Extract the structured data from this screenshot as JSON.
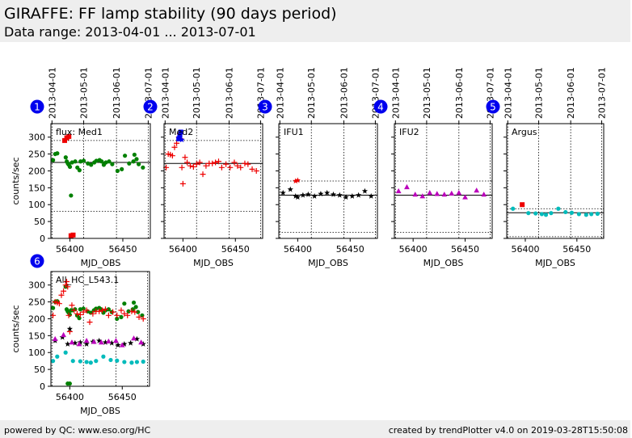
{
  "header": {
    "title": "GIRAFFE: FF lamp stability (90 days period)",
    "subtitle": "Data range: 2013-04-01 ... 2013-07-01"
  },
  "footer": {
    "left": "powered by QC: www.eso.org/HC",
    "right": "created by trendPlotter v4.0 on 2019-03-28T15:50:08"
  },
  "colors": {
    "header_bg": "#eeeeee",
    "badge": "#0000ee",
    "green": "#008000",
    "red": "#ee0000",
    "blue": "#0000ee",
    "black": "#000000",
    "magenta": "#bb00bb",
    "cyan": "#00bbbb"
  },
  "chart_data": [
    {
      "id": "1",
      "type": "scatter",
      "label": "flux: Med1",
      "xlabel": "MJD_OBS",
      "ylabel": "counts/sec",
      "xlim": [
        56382,
        56476
      ],
      "ylim": [
        0,
        340
      ],
      "xticks": [
        56400,
        56450
      ],
      "yticks": [
        0,
        50,
        100,
        150,
        200,
        250,
        300
      ],
      "top_dates": [
        "2013-04-01",
        "2013-05-01",
        "2013-06-01",
        "2013-07-01"
      ],
      "top_date_mjd": [
        56383,
        56413,
        56444,
        56474
      ],
      "ref_line": 225,
      "limits": [
        290,
        80
      ],
      "series": [
        {
          "marker": "dot",
          "color": "#008000",
          "x": [
            56384,
            56386,
            56388,
            56396,
            56397,
            56398,
            56399,
            56400,
            56401,
            56402,
            56405,
            56407,
            56409,
            56410,
            56413,
            56417,
            56420,
            56423,
            56425,
            56428,
            56430,
            56432,
            56434,
            56437,
            56440,
            56445,
            56449,
            56452,
            56456,
            56460,
            56461,
            56463,
            56465,
            56469
          ],
          "y": [
            232,
            250,
            252,
            240,
            228,
            222,
            218,
            212,
            127,
            225,
            228,
            210,
            202,
            228,
            230,
            222,
            218,
            225,
            230,
            232,
            228,
            218,
            225,
            228,
            220,
            200,
            205,
            245,
            222,
            228,
            248,
            235,
            220,
            210
          ]
        },
        {
          "marker": "square",
          "color": "#ee0000",
          "x": [
            56395,
            56397,
            56399,
            56401,
            56403
          ],
          "y": [
            290,
            298,
            302,
            8,
            10
          ]
        }
      ]
    },
    {
      "id": "2",
      "type": "scatter",
      "label": "Med2",
      "xlabel": "MJD_OBS",
      "ylabel": "",
      "xlim": [
        56382,
        56476
      ],
      "ylim": [
        0,
        340
      ],
      "xticks": [
        56400,
        56450
      ],
      "yticks": [
        0,
        50,
        100,
        150,
        200,
        250,
        300
      ],
      "top_dates": [
        "2013-04-01",
        "2013-05-01",
        "2013-06-01",
        "2013-07-01"
      ],
      "top_date_mjd": [
        56383,
        56413,
        56444,
        56474
      ],
      "ref_line": 222,
      "limits": [
        290,
        80
      ],
      "series": [
        {
          "marker": "plus",
          "color": "#ee0000",
          "x": [
            56384,
            56386,
            56388,
            56390,
            56392,
            56394,
            56396,
            56397,
            56398,
            56399,
            56400,
            56402,
            56404,
            56407,
            56410,
            56413,
            56416,
            56419,
            56422,
            56425,
            56428,
            56431,
            56434,
            56437,
            56441,
            56445,
            56449,
            56452,
            56455,
            56459,
            56462,
            56466,
            56470
          ],
          "y": [
            210,
            250,
            248,
            245,
            270,
            282,
            300,
            310,
            295,
            210,
            162,
            240,
            225,
            215,
            212,
            220,
            225,
            190,
            215,
            222,
            222,
            225,
            228,
            210,
            220,
            210,
            225,
            215,
            210,
            222,
            220,
            205,
            200
          ]
        },
        {
          "marker": "square",
          "color": "#0000ee",
          "x": [
            56396,
            56397,
            56398
          ],
          "y": [
            295,
            305,
            315
          ]
        },
        {
          "marker": "star",
          "color": "#0000ee",
          "x": [
            56397,
            56399
          ],
          "y": [
            300,
            292
          ]
        }
      ]
    },
    {
      "id": "3",
      "type": "scatter",
      "label": "IFU1",
      "xlabel": "MJD_OBS",
      "ylabel": "",
      "xlim": [
        56382,
        56476
      ],
      "ylim": [
        0,
        340
      ],
      "xticks": [
        56400,
        56450
      ],
      "yticks": [
        0,
        50,
        100,
        150,
        200,
        250,
        300
      ],
      "top_dates": [
        "2013-04-01",
        "2013-05-01",
        "2013-06-01",
        "2013-07-01"
      ],
      "top_date_mjd": [
        56383,
        56413,
        56444,
        56474
      ],
      "ref_line": 128,
      "limits": [
        170,
        18
      ],
      "series": [
        {
          "marker": "star",
          "color": "#000000",
          "x": [
            56386,
            56393,
            56398,
            56400,
            56405,
            56410,
            56416,
            56422,
            56428,
            56434,
            56440,
            56446,
            56452,
            56458,
            56464,
            56470
          ],
          "y": [
            135,
            145,
            125,
            122,
            128,
            130,
            125,
            132,
            135,
            130,
            128,
            122,
            125,
            128,
            140,
            125
          ]
        },
        {
          "marker": "star",
          "color": "#ee0000",
          "x": [
            56398,
            56400
          ],
          "y": [
            170,
            172
          ]
        }
      ]
    },
    {
      "id": "4",
      "type": "scatter",
      "label": "IFU2",
      "xlabel": "MJD_OBS",
      "ylabel": "",
      "xlim": [
        56382,
        56476
      ],
      "ylim": [
        0,
        340
      ],
      "xticks": [
        56400,
        56450
      ],
      "yticks": [
        0,
        50,
        100,
        150,
        200,
        250,
        300
      ],
      "top_dates": [
        "2013-04-01",
        "2013-05-01",
        "2013-06-01",
        "2013-07-01"
      ],
      "top_date_mjd": [
        56383,
        56413,
        56444,
        56474
      ],
      "ref_line": 128,
      "limits": [
        170,
        18
      ],
      "series": [
        {
          "marker": "triangle",
          "color": "#bb00bb",
          "x": [
            56386,
            56394,
            56402,
            56409,
            56416,
            56423,
            56430,
            56437,
            56444,
            56450,
            56461,
            56468
          ],
          "y": [
            140,
            152,
            130,
            125,
            135,
            132,
            130,
            133,
            135,
            122,
            142,
            130
          ]
        }
      ]
    },
    {
      "id": "5",
      "type": "scatter",
      "label": "Argus",
      "xlabel": "MJD_OBS",
      "ylabel": "",
      "xlim": [
        56382,
        56476
      ],
      "ylim": [
        0,
        340
      ],
      "xticks": [
        56400,
        56450
      ],
      "yticks": [
        0,
        50,
        100,
        150,
        200,
        250,
        300
      ],
      "top_dates": [
        "2013-04-01",
        "2013-05-01",
        "2013-06-01",
        "2013-07-01"
      ],
      "top_date_mjd": [
        56383,
        56413,
        56444,
        56474
      ],
      "ref_line": 76,
      "limits": [
        88,
        5
      ],
      "series": [
        {
          "marker": "dot",
          "color": "#00bbbb",
          "x": [
            56388,
            56403,
            56410,
            56416,
            56420,
            56425,
            56432,
            56439,
            56445,
            56452,
            56459,
            56464,
            56470
          ],
          "y": [
            88,
            75,
            74,
            72,
            70,
            75,
            88,
            78,
            76,
            72,
            70,
            72,
            73
          ]
        },
        {
          "marker": "square",
          "color": "#ee0000",
          "x": [
            56397
          ],
          "y": [
            100
          ]
        }
      ]
    },
    {
      "id": "6",
      "type": "scatter",
      "label": "All_HC_L543.1",
      "xlabel": "MJD_OBS",
      "ylabel": "counts/sec",
      "xlim": [
        56382,
        56476
      ],
      "ylim": [
        0,
        340
      ],
      "xticks": [
        56400,
        56450
      ],
      "yticks": [
        0,
        50,
        100,
        150,
        200,
        250,
        300
      ],
      "top_dates": [],
      "top_date_mjd": [
        56383,
        56413,
        56444,
        56474
      ],
      "ref_line": null,
      "limits": [],
      "series": [
        {
          "marker": "dot",
          "color": "#008000",
          "x": [
            56384,
            56386,
            56388,
            56396,
            56397,
            56398,
            56399,
            56400,
            56401,
            56402,
            56405,
            56407,
            56409,
            56410,
            56413,
            56417,
            56420,
            56423,
            56425,
            56428,
            56430,
            56432,
            56434,
            56437,
            56440,
            56445,
            56449,
            56452,
            56456,
            56460,
            56461,
            56463,
            56465,
            56469
          ],
          "y": [
            232,
            250,
            252,
            295,
            228,
            222,
            218,
            212,
            225,
            225,
            228,
            210,
            202,
            228,
            230,
            222,
            218,
            225,
            230,
            232,
            228,
            218,
            225,
            228,
            220,
            200,
            205,
            245,
            222,
            228,
            248,
            235,
            220,
            210
          ]
        },
        {
          "marker": "dot",
          "color": "#008000",
          "x": [
            56398,
            56400
          ],
          "y": [
            8,
            8
          ]
        },
        {
          "marker": "plus",
          "color": "#ee0000",
          "x": [
            56384,
            56386,
            56388,
            56390,
            56392,
            56394,
            56396,
            56397,
            56398,
            56399,
            56400,
            56402,
            56404,
            56407,
            56410,
            56413,
            56416,
            56419,
            56422,
            56425,
            56428,
            56431,
            56434,
            56437,
            56441,
            56445,
            56449,
            56452,
            56455,
            56459,
            56462,
            56466,
            56470
          ],
          "y": [
            210,
            250,
            248,
            245,
            270,
            282,
            300,
            310,
            295,
            210,
            162,
            240,
            225,
            215,
            212,
            220,
            225,
            190,
            215,
            222,
            222,
            225,
            228,
            210,
            220,
            210,
            225,
            215,
            210,
            222,
            220,
            205,
            200
          ]
        },
        {
          "marker": "star",
          "color": "#000000",
          "x": [
            56386,
            56393,
            56398,
            56400,
            56405,
            56410,
            56416,
            56422,
            56428,
            56434,
            56440,
            56446,
            56452,
            56458,
            56464,
            56470
          ],
          "y": [
            135,
            145,
            125,
            170,
            128,
            130,
            125,
            132,
            135,
            130,
            128,
            122,
            125,
            128,
            140,
            125
          ]
        },
        {
          "marker": "triangle",
          "color": "#bb00bb",
          "x": [
            56386,
            56394,
            56402,
            56409,
            56416,
            56423,
            56430,
            56437,
            56444,
            56450,
            56461,
            56468
          ],
          "y": [
            140,
            152,
            130,
            125,
            135,
            132,
            130,
            133,
            135,
            122,
            142,
            130
          ]
        },
        {
          "marker": "dot",
          "color": "#00bbbb",
          "x": [
            56384,
            56388,
            56396,
            56403,
            56410,
            56416,
            56420,
            56425,
            56432,
            56439,
            56445,
            56452,
            56459,
            56464,
            56470
          ],
          "y": [
            75,
            88,
            100,
            75,
            74,
            72,
            70,
            75,
            88,
            78,
            76,
            72,
            70,
            72,
            73
          ]
        }
      ]
    }
  ]
}
